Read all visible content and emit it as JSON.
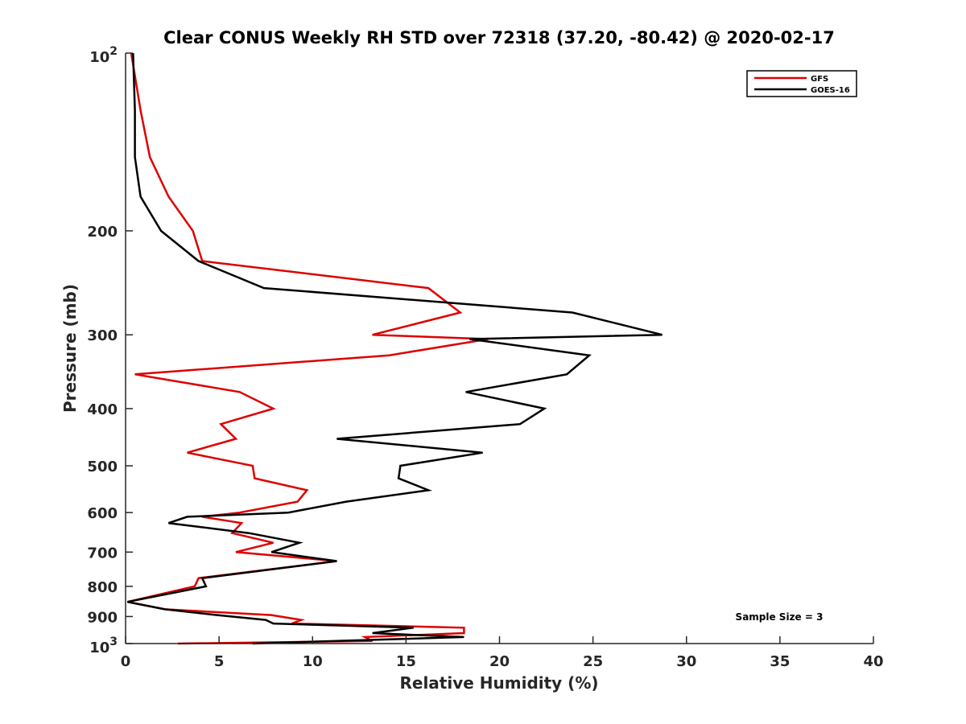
{
  "chart_data": {
    "type": "line",
    "title": "Clear CONUS Weekly RH STD over 72318 (37.20, -80.42) @ 2020-02-17",
    "xlabel": "Relative Humidity (%)",
    "ylabel": "Pressure (mb)",
    "xlim": [
      0,
      40
    ],
    "ylim": [
      100,
      1000
    ],
    "y_scale": "log",
    "y_reversed": true,
    "x_ticks": [
      0,
      5,
      10,
      15,
      20,
      25,
      30,
      35,
      40
    ],
    "x_tick_labels": [
      "0",
      "5",
      "10",
      "15",
      "20",
      "25",
      "30",
      "35",
      "40"
    ],
    "y_ticks": [
      100,
      200,
      300,
      400,
      500,
      600,
      700,
      800,
      900,
      1000
    ],
    "y_tick_labels": [
      {
        "base": "10",
        "exp": "2"
      },
      {
        "base": "200",
        "exp": ""
      },
      {
        "base": "300",
        "exp": ""
      },
      {
        "base": "400",
        "exp": ""
      },
      {
        "base": "500",
        "exp": ""
      },
      {
        "base": "600",
        "exp": ""
      },
      {
        "base": "700",
        "exp": ""
      },
      {
        "base": "800",
        "exp": ""
      },
      {
        "base": "900",
        "exp": ""
      },
      {
        "base": "10",
        "exp": "3"
      }
    ],
    "grid": false,
    "legend_position": "top-right",
    "annotation": "Sample Size = 3",
    "series": [
      {
        "name": "GFS",
        "color": "#dd0000",
        "points": [
          [
            0.3,
            100
          ],
          [
            0.8,
            125
          ],
          [
            1.3,
            150
          ],
          [
            2.3,
            175
          ],
          [
            3.6,
            200
          ],
          [
            4.1,
            225
          ],
          [
            16.2,
            250
          ],
          [
            17.9,
            275
          ],
          [
            13.2,
            300
          ],
          [
            19.4,
            305
          ],
          [
            14.1,
            325
          ],
          [
            0.5,
            350
          ],
          [
            6.1,
            375
          ],
          [
            7.9,
            400
          ],
          [
            5.1,
            425
          ],
          [
            5.9,
            450
          ],
          [
            3.3,
            475
          ],
          [
            6.8,
            500
          ],
          [
            6.9,
            525
          ],
          [
            9.7,
            550
          ],
          [
            9.2,
            575
          ],
          [
            6.1,
            600
          ],
          [
            4.1,
            610
          ],
          [
            6.2,
            625
          ],
          [
            5.7,
            650
          ],
          [
            7.9,
            675
          ],
          [
            5.9,
            700
          ],
          [
            11.3,
            725
          ],
          [
            3.9,
            775
          ],
          [
            3.7,
            800
          ],
          [
            0.1,
            850
          ],
          [
            2.1,
            875
          ],
          [
            7.8,
            895
          ],
          [
            9.4,
            912
          ],
          [
            8.9,
            925
          ],
          [
            18.1,
            940
          ],
          [
            18.1,
            960
          ],
          [
            12.8,
            975
          ],
          [
            13.2,
            990
          ],
          [
            2.8,
            1000
          ]
        ]
      },
      {
        "name": "GOES-16",
        "color": "#000000",
        "points": [
          [
            0.4,
            100
          ],
          [
            0.5,
            125
          ],
          [
            0.5,
            150
          ],
          [
            0.8,
            175
          ],
          [
            1.9,
            200
          ],
          [
            3.9,
            225
          ],
          [
            7.4,
            250
          ],
          [
            23.9,
            275
          ],
          [
            28.7,
            300
          ],
          [
            18.4,
            305
          ],
          [
            24.8,
            325
          ],
          [
            23.6,
            350
          ],
          [
            18.2,
            375
          ],
          [
            22.4,
            400
          ],
          [
            21.1,
            425
          ],
          [
            11.3,
            450
          ],
          [
            19.1,
            475
          ],
          [
            14.7,
            500
          ],
          [
            14.6,
            525
          ],
          [
            16.2,
            550
          ],
          [
            11.8,
            575
          ],
          [
            8.7,
            600
          ],
          [
            3.3,
            610
          ],
          [
            2.3,
            625
          ],
          [
            6.6,
            650
          ],
          [
            9.3,
            675
          ],
          [
            7.8,
            700
          ],
          [
            11.3,
            725
          ],
          [
            4.1,
            775
          ],
          [
            4.3,
            800
          ],
          [
            0.1,
            850
          ],
          [
            2.1,
            875
          ],
          [
            4.9,
            895
          ],
          [
            7.5,
            912
          ],
          [
            7.9,
            925
          ],
          [
            15.4,
            940
          ],
          [
            13.2,
            960
          ],
          [
            18.1,
            975
          ],
          [
            6.8,
            1000
          ]
        ]
      }
    ]
  }
}
